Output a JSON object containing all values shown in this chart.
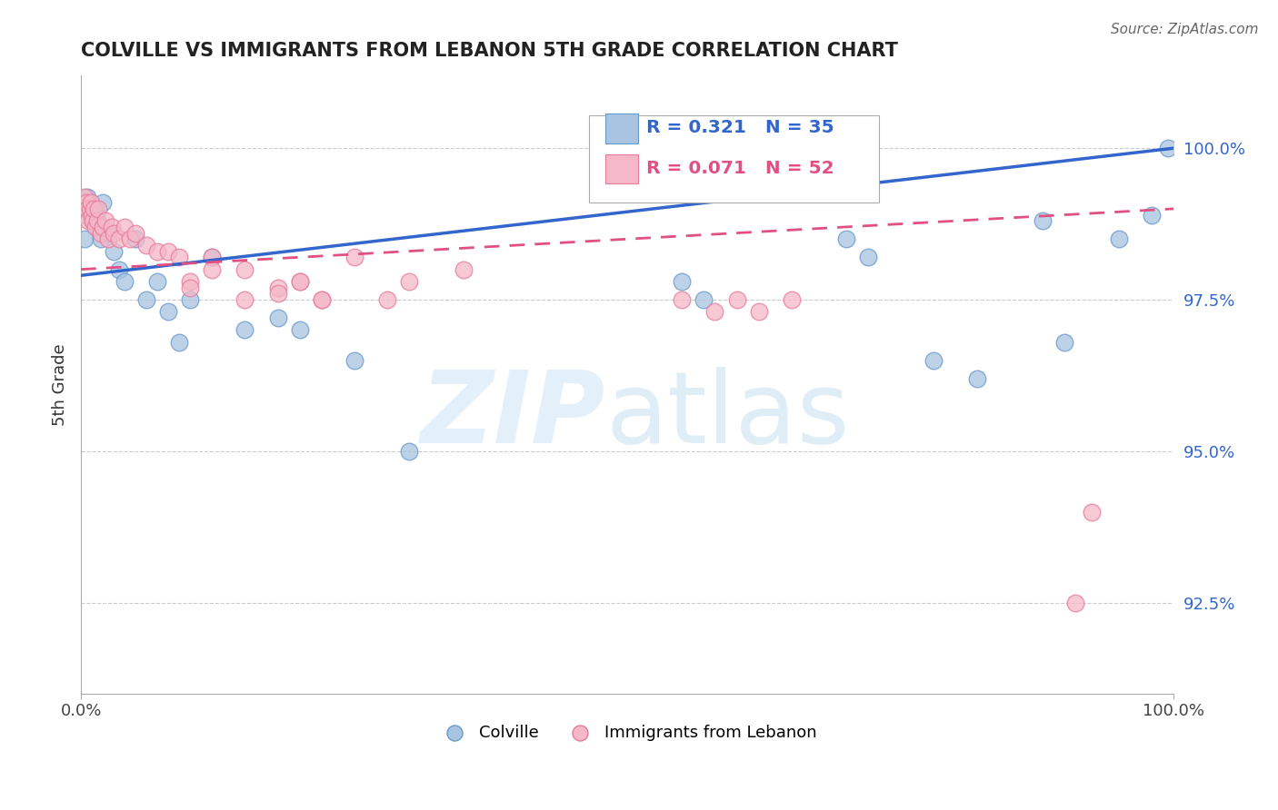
{
  "title": "COLVILLE VS IMMIGRANTS FROM LEBANON 5TH GRADE CORRELATION CHART",
  "source_text": "Source: ZipAtlas.com",
  "ylabel": "5th Grade",
  "x_min": 0.0,
  "x_max": 100.0,
  "y_min": 91.0,
  "y_max": 101.2,
  "yticks": [
    92.5,
    95.0,
    97.5,
    100.0
  ],
  "ytick_labels": [
    "92.5%",
    "95.0%",
    "97.5%",
    "100.0%"
  ],
  "xticks": [
    0.0,
    100.0
  ],
  "xtick_labels": [
    "0.0%",
    "100.0%"
  ],
  "colville_color": "#a8c4e0",
  "colville_edge": "#6699cc",
  "lebanon_color": "#f4b8c8",
  "lebanon_edge": "#e87a9a",
  "colville_R": 0.321,
  "colville_N": 35,
  "lebanon_R": 0.071,
  "lebanon_N": 52,
  "colville_line_color": "#3366cc",
  "lebanon_line_color": "#e05080",
  "grid_color": "#cccccc",
  "colville_x": [
    0.3,
    0.6,
    0.8,
    1.0,
    1.3,
    1.5,
    1.8,
    2.0,
    2.5,
    3.0,
    3.5,
    4.0,
    5.0,
    6.0,
    7.0,
    8.0,
    9.0,
    10.0,
    12.0,
    15.0,
    18.0,
    20.0,
    25.0,
    30.0,
    55.0,
    57.0,
    70.0,
    72.0,
    78.0,
    82.0,
    88.0,
    90.0,
    95.0,
    98.0,
    99.5
  ],
  "colville_y": [
    98.5,
    99.2,
    99.0,
    98.8,
    99.0,
    98.7,
    98.5,
    99.1,
    98.6,
    98.3,
    98.0,
    97.8,
    98.5,
    97.5,
    97.8,
    97.3,
    96.8,
    97.5,
    98.2,
    97.0,
    97.2,
    97.0,
    96.5,
    95.0,
    97.8,
    97.5,
    98.5,
    98.2,
    96.5,
    96.2,
    98.8,
    96.8,
    98.5,
    98.9,
    100.0
  ],
  "lebanon_x": [
    0.1,
    0.2,
    0.3,
    0.4,
    0.5,
    0.6,
    0.7,
    0.8,
    0.9,
    1.0,
    1.1,
    1.2,
    1.3,
    1.5,
    1.6,
    1.8,
    2.0,
    2.2,
    2.5,
    2.8,
    3.0,
    3.5,
    4.0,
    4.5,
    5.0,
    6.0,
    7.0,
    8.0,
    9.0,
    10.0,
    12.0,
    15.0,
    18.0,
    20.0,
    22.0,
    25.0,
    28.0,
    30.0,
    35.0,
    10.0,
    12.0,
    15.0,
    18.0,
    20.0,
    22.0,
    55.0,
    58.0,
    60.0,
    62.0,
    65.0,
    92.5,
    91.0
  ],
  "lebanon_y": [
    99.1,
    99.0,
    99.2,
    98.9,
    99.1,
    99.0,
    98.8,
    99.0,
    99.1,
    98.9,
    98.8,
    99.0,
    98.7,
    98.8,
    99.0,
    98.6,
    98.7,
    98.8,
    98.5,
    98.7,
    98.6,
    98.5,
    98.7,
    98.5,
    98.6,
    98.4,
    98.3,
    98.3,
    98.2,
    97.8,
    98.2,
    98.0,
    97.7,
    97.8,
    97.5,
    98.2,
    97.5,
    97.8,
    98.0,
    97.7,
    98.0,
    97.5,
    97.6,
    97.8,
    97.5,
    97.5,
    97.3,
    97.5,
    97.3,
    97.5,
    94.0,
    92.5
  ]
}
